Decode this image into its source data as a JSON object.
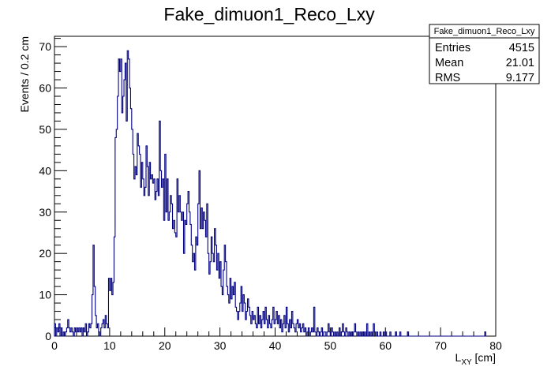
{
  "chart_data": {
    "type": "histogram",
    "title": "Fake_dimuon1_Reco_Lxy",
    "xlabel_main": "L",
    "xlabel_sub": "XY",
    "xlabel_unit": " [cm]",
    "ylabel": "Events / 0.2 cm",
    "xlim": [
      0,
      80
    ],
    "ylim": [
      0,
      72.5
    ],
    "bin_width": 0.2,
    "line_color": "#000080",
    "grid": false,
    "x_ticks": [
      0,
      10,
      20,
      30,
      40,
      50,
      60,
      70,
      80
    ],
    "y_ticks": [
      0,
      10,
      20,
      30,
      40,
      50,
      60,
      70
    ],
    "points": [
      [
        0.0,
        3
      ],
      [
        0.2,
        0
      ],
      [
        0.4,
        2
      ],
      [
        0.6,
        1
      ],
      [
        0.8,
        3
      ],
      [
        1.0,
        0
      ],
      [
        1.2,
        2
      ],
      [
        1.4,
        0
      ],
      [
        1.6,
        1
      ],
      [
        1.8,
        0
      ],
      [
        2.0,
        1
      ],
      [
        2.2,
        2
      ],
      [
        2.4,
        4
      ],
      [
        2.6,
        2
      ],
      [
        2.8,
        1
      ],
      [
        3.0,
        2
      ],
      [
        3.2,
        1
      ],
      [
        3.4,
        0
      ],
      [
        3.6,
        2
      ],
      [
        3.8,
        1
      ],
      [
        4.0,
        2
      ],
      [
        4.2,
        1
      ],
      [
        4.4,
        2
      ],
      [
        4.6,
        1
      ],
      [
        4.8,
        2
      ],
      [
        5.0,
        0
      ],
      [
        5.2,
        2
      ],
      [
        5.4,
        1
      ],
      [
        5.6,
        3
      ],
      [
        5.8,
        0
      ],
      [
        6.0,
        1
      ],
      [
        6.2,
        3
      ],
      [
        6.4,
        2
      ],
      [
        6.6,
        3
      ],
      [
        6.8,
        10
      ],
      [
        7.0,
        22
      ],
      [
        7.2,
        12
      ],
      [
        7.4,
        5
      ],
      [
        7.6,
        2
      ],
      [
        7.8,
        3
      ],
      [
        8.0,
        1
      ],
      [
        8.2,
        0
      ],
      [
        8.4,
        2
      ],
      [
        8.6,
        3
      ],
      [
        8.8,
        4
      ],
      [
        9.0,
        2
      ],
      [
        9.2,
        5
      ],
      [
        9.4,
        3
      ],
      [
        9.6,
        2
      ],
      [
        9.8,
        14
      ],
      [
        10.0,
        11
      ],
      [
        10.2,
        14
      ],
      [
        10.4,
        10
      ],
      [
        10.6,
        13
      ],
      [
        10.8,
        24
      ],
      [
        11.0,
        48
      ],
      [
        11.2,
        50
      ],
      [
        11.4,
        58
      ],
      [
        11.6,
        67
      ],
      [
        11.8,
        64
      ],
      [
        12.0,
        67
      ],
      [
        12.2,
        54
      ],
      [
        12.4,
        58
      ],
      [
        12.6,
        62
      ],
      [
        12.8,
        66
      ],
      [
        13.0,
        52
      ],
      [
        13.2,
        69
      ],
      [
        13.4,
        67
      ],
      [
        13.6,
        60
      ],
      [
        13.8,
        55
      ],
      [
        14.0,
        50
      ],
      [
        14.2,
        44
      ],
      [
        14.4,
        38
      ],
      [
        14.6,
        41
      ],
      [
        14.8,
        39
      ],
      [
        15.0,
        49
      ],
      [
        15.2,
        46
      ],
      [
        15.4,
        44
      ],
      [
        15.6,
        36
      ],
      [
        15.8,
        42
      ],
      [
        16.0,
        38
      ],
      [
        16.2,
        34
      ],
      [
        16.4,
        36
      ],
      [
        16.6,
        46
      ],
      [
        16.8,
        41
      ],
      [
        17.0,
        34
      ],
      [
        17.2,
        42
      ],
      [
        17.4,
        38
      ],
      [
        17.6,
        39
      ],
      [
        17.8,
        37
      ],
      [
        18.0,
        38
      ],
      [
        18.2,
        33
      ],
      [
        18.4,
        35
      ],
      [
        18.6,
        38
      ],
      [
        18.8,
        34
      ],
      [
        19.0,
        52
      ],
      [
        19.2,
        40
      ],
      [
        19.4,
        36
      ],
      [
        19.6,
        38
      ],
      [
        19.8,
        28
      ],
      [
        20.0,
        44
      ],
      [
        20.2,
        30
      ],
      [
        20.4,
        38
      ],
      [
        20.6,
        28
      ],
      [
        20.8,
        30
      ],
      [
        21.0,
        34
      ],
      [
        21.2,
        32
      ],
      [
        21.4,
        26
      ],
      [
        21.6,
        28
      ],
      [
        21.8,
        25
      ],
      [
        22.0,
        24
      ],
      [
        22.2,
        38
      ],
      [
        22.4,
        30
      ],
      [
        22.6,
        34
      ],
      [
        22.8,
        30
      ],
      [
        23.0,
        28
      ],
      [
        23.2,
        30
      ],
      [
        23.4,
        20
      ],
      [
        23.6,
        28
      ],
      [
        23.8,
        27
      ],
      [
        24.0,
        32
      ],
      [
        24.2,
        35
      ],
      [
        24.4,
        30
      ],
      [
        24.6,
        27
      ],
      [
        24.8,
        22
      ],
      [
        25.0,
        18
      ],
      [
        25.2,
        20
      ],
      [
        25.4,
        16
      ],
      [
        25.6,
        24
      ],
      [
        25.8,
        22
      ],
      [
        26.0,
        32
      ],
      [
        26.2,
        40
      ],
      [
        26.4,
        26
      ],
      [
        26.6,
        31
      ],
      [
        26.8,
        26
      ],
      [
        27.0,
        30
      ],
      [
        27.2,
        28
      ],
      [
        27.4,
        24
      ],
      [
        27.6,
        32
      ],
      [
        27.8,
        20
      ],
      [
        28.0,
        15
      ],
      [
        28.2,
        18
      ],
      [
        28.4,
        24
      ],
      [
        28.6,
        20
      ],
      [
        28.8,
        18
      ],
      [
        29.0,
        26
      ],
      [
        29.2,
        22
      ],
      [
        29.4,
        16
      ],
      [
        29.6,
        20
      ],
      [
        29.8,
        14
      ],
      [
        30.0,
        18
      ],
      [
        30.2,
        12
      ],
      [
        30.4,
        10
      ],
      [
        30.6,
        16
      ],
      [
        30.8,
        22
      ],
      [
        31.0,
        18
      ],
      [
        31.2,
        12
      ],
      [
        31.4,
        10
      ],
      [
        31.6,
        8
      ],
      [
        31.8,
        14
      ],
      [
        32.0,
        9
      ],
      [
        32.2,
        12
      ],
      [
        32.4,
        10
      ],
      [
        32.6,
        13
      ],
      [
        32.8,
        7
      ],
      [
        33.0,
        6
      ],
      [
        33.2,
        4
      ],
      [
        33.4,
        6
      ],
      [
        33.6,
        8
      ],
      [
        33.8,
        12
      ],
      [
        34.0,
        6
      ],
      [
        34.2,
        10
      ],
      [
        34.4,
        8
      ],
      [
        34.6,
        4
      ],
      [
        34.8,
        6
      ],
      [
        35.0,
        9
      ],
      [
        35.2,
        7
      ],
      [
        35.4,
        5
      ],
      [
        35.6,
        3
      ],
      [
        35.8,
        6
      ],
      [
        36.0,
        4
      ],
      [
        36.2,
        5
      ],
      [
        36.4,
        3
      ],
      [
        36.6,
        2
      ],
      [
        36.8,
        7
      ],
      [
        37.0,
        3
      ],
      [
        37.2,
        5
      ],
      [
        37.4,
        2
      ],
      [
        37.6,
        4
      ],
      [
        37.8,
        6
      ],
      [
        38.0,
        3
      ],
      [
        38.2,
        7
      ],
      [
        38.4,
        4
      ],
      [
        38.6,
        2
      ],
      [
        38.8,
        5
      ],
      [
        39.0,
        3
      ],
      [
        39.2,
        2
      ],
      [
        39.4,
        4
      ],
      [
        39.6,
        7
      ],
      [
        39.8,
        3
      ],
      [
        40.0,
        4
      ],
      [
        40.2,
        6
      ],
      [
        40.4,
        3
      ],
      [
        40.6,
        5
      ],
      [
        40.8,
        2
      ],
      [
        41.0,
        4
      ],
      [
        41.2,
        1
      ],
      [
        41.4,
        3
      ],
      [
        41.6,
        5
      ],
      [
        41.8,
        2
      ],
      [
        42.0,
        7
      ],
      [
        42.2,
        3
      ],
      [
        42.4,
        1
      ],
      [
        42.6,
        4
      ],
      [
        42.8,
        2
      ],
      [
        43.0,
        6
      ],
      [
        43.2,
        3
      ],
      [
        43.4,
        2
      ],
      [
        43.6,
        1
      ],
      [
        43.8,
        3
      ],
      [
        44.0,
        4
      ],
      [
        44.2,
        2
      ],
      [
        44.4,
        3
      ],
      [
        44.6,
        1
      ],
      [
        44.8,
        2
      ],
      [
        45.0,
        3
      ],
      [
        45.2,
        1
      ],
      [
        45.4,
        2
      ],
      [
        45.6,
        0
      ],
      [
        45.8,
        1
      ],
      [
        46.0,
        2
      ],
      [
        46.2,
        0
      ],
      [
        46.4,
        1
      ],
      [
        46.6,
        2
      ],
      [
        46.8,
        1
      ],
      [
        47.0,
        7
      ],
      [
        47.2,
        1
      ],
      [
        47.4,
        0
      ],
      [
        47.6,
        2
      ],
      [
        47.8,
        1
      ],
      [
        48.0,
        0
      ],
      [
        48.2,
        1
      ],
      [
        48.4,
        2
      ],
      [
        48.6,
        0
      ],
      [
        48.8,
        1
      ],
      [
        49.0,
        1
      ],
      [
        49.2,
        0
      ],
      [
        49.4,
        1
      ],
      [
        49.6,
        3
      ],
      [
        49.8,
        1
      ],
      [
        50.0,
        0
      ],
      [
        50.2,
        2
      ],
      [
        50.4,
        1
      ],
      [
        50.6,
        0
      ],
      [
        50.8,
        1
      ],
      [
        51.0,
        0
      ],
      [
        51.2,
        1
      ],
      [
        51.4,
        0
      ],
      [
        51.6,
        2
      ],
      [
        51.8,
        0
      ],
      [
        52.0,
        1
      ],
      [
        52.2,
        3
      ],
      [
        52.4,
        1
      ],
      [
        52.6,
        0
      ],
      [
        52.8,
        2
      ],
      [
        53.0,
        1
      ],
      [
        53.2,
        0
      ],
      [
        53.4,
        1
      ],
      [
        53.6,
        0
      ],
      [
        53.8,
        1
      ],
      [
        54.0,
        0
      ],
      [
        54.2,
        1
      ],
      [
        54.4,
        3
      ],
      [
        54.6,
        1
      ],
      [
        54.8,
        0
      ],
      [
        55.0,
        1
      ],
      [
        55.2,
        0
      ],
      [
        55.4,
        1
      ],
      [
        55.6,
        0
      ],
      [
        55.8,
        1
      ],
      [
        56.0,
        0
      ],
      [
        56.2,
        1
      ],
      [
        56.4,
        0
      ],
      [
        56.6,
        3
      ],
      [
        56.8,
        0
      ],
      [
        57.0,
        1
      ],
      [
        57.2,
        0
      ],
      [
        57.4,
        1
      ],
      [
        57.6,
        0
      ],
      [
        57.8,
        3
      ],
      [
        58.0,
        1
      ],
      [
        58.2,
        0
      ],
      [
        58.4,
        1
      ],
      [
        58.6,
        0
      ],
      [
        58.8,
        0
      ],
      [
        59.0,
        1
      ],
      [
        59.2,
        0
      ],
      [
        59.4,
        0
      ],
      [
        59.6,
        1
      ],
      [
        59.8,
        0
      ],
      [
        60.0,
        1
      ],
      [
        60.2,
        0
      ],
      [
        60.4,
        0
      ],
      [
        60.6,
        0
      ],
      [
        60.8,
        1
      ],
      [
        61.0,
        0
      ],
      [
        61.2,
        0
      ],
      [
        61.4,
        0
      ],
      [
        61.6,
        0
      ],
      [
        61.8,
        1
      ],
      [
        62.0,
        0
      ],
      [
        62.2,
        0
      ],
      [
        62.4,
        0
      ],
      [
        62.6,
        1
      ],
      [
        62.8,
        0
      ],
      [
        63.0,
        0
      ],
      [
        63.2,
        0
      ],
      [
        63.4,
        0
      ],
      [
        63.6,
        0
      ],
      [
        63.8,
        0
      ],
      [
        64.0,
        1
      ],
      [
        64.2,
        0
      ],
      [
        64.4,
        0
      ],
      [
        64.6,
        0
      ],
      [
        64.8,
        0
      ],
      [
        65.0,
        0
      ],
      [
        65.2,
        0
      ],
      [
        65.4,
        0
      ],
      [
        65.6,
        0
      ],
      [
        65.8,
        0
      ],
      [
        66.0,
        0
      ],
      [
        66.2,
        0
      ],
      [
        66.4,
        0
      ],
      [
        66.6,
        0
      ],
      [
        66.8,
        0
      ],
      [
        67.0,
        0
      ],
      [
        67.2,
        0
      ],
      [
        67.4,
        0
      ],
      [
        67.6,
        0
      ],
      [
        67.8,
        0
      ],
      [
        68.0,
        0
      ],
      [
        68.2,
        0
      ],
      [
        68.4,
        0
      ],
      [
        68.6,
        0
      ],
      [
        68.8,
        0
      ],
      [
        69.0,
        0
      ],
      [
        69.2,
        0
      ],
      [
        69.4,
        0
      ],
      [
        69.6,
        0
      ],
      [
        69.8,
        0
      ],
      [
        70.0,
        0
      ],
      [
        70.2,
        0
      ],
      [
        70.4,
        0
      ],
      [
        70.6,
        0
      ],
      [
        70.8,
        0
      ],
      [
        71.0,
        0
      ],
      [
        71.2,
        0
      ],
      [
        71.4,
        0
      ],
      [
        71.6,
        0
      ],
      [
        71.8,
        0
      ],
      [
        72.0,
        0
      ],
      [
        72.2,
        0
      ],
      [
        72.4,
        0
      ],
      [
        72.6,
        0
      ],
      [
        72.8,
        0
      ],
      [
        73.0,
        0
      ],
      [
        73.2,
        0
      ],
      [
        73.4,
        0
      ],
      [
        73.6,
        0
      ],
      [
        73.8,
        0
      ],
      [
        74.0,
        0
      ],
      [
        74.2,
        0
      ],
      [
        74.4,
        0
      ],
      [
        74.6,
        0
      ],
      [
        74.8,
        0
      ],
      [
        75.0,
        0
      ],
      [
        75.2,
        0
      ],
      [
        75.4,
        0
      ],
      [
        75.6,
        0
      ],
      [
        75.8,
        0
      ],
      [
        76.0,
        0
      ],
      [
        76.2,
        0
      ],
      [
        76.4,
        0
      ],
      [
        76.6,
        0
      ],
      [
        76.8,
        0
      ],
      [
        77.0,
        0
      ],
      [
        77.2,
        0
      ],
      [
        77.4,
        0
      ],
      [
        77.6,
        0
      ],
      [
        77.8,
        0
      ],
      [
        78.0,
        1
      ],
      [
        78.2,
        0
      ]
    ]
  },
  "stats_box": {
    "name": "Fake_dimuon1_Reco_Lxy",
    "rows": [
      {
        "label": "Entries",
        "value": "4515"
      },
      {
        "label": "Mean",
        "value": "21.01"
      },
      {
        "label": "RMS",
        "value": "9.177"
      }
    ]
  }
}
